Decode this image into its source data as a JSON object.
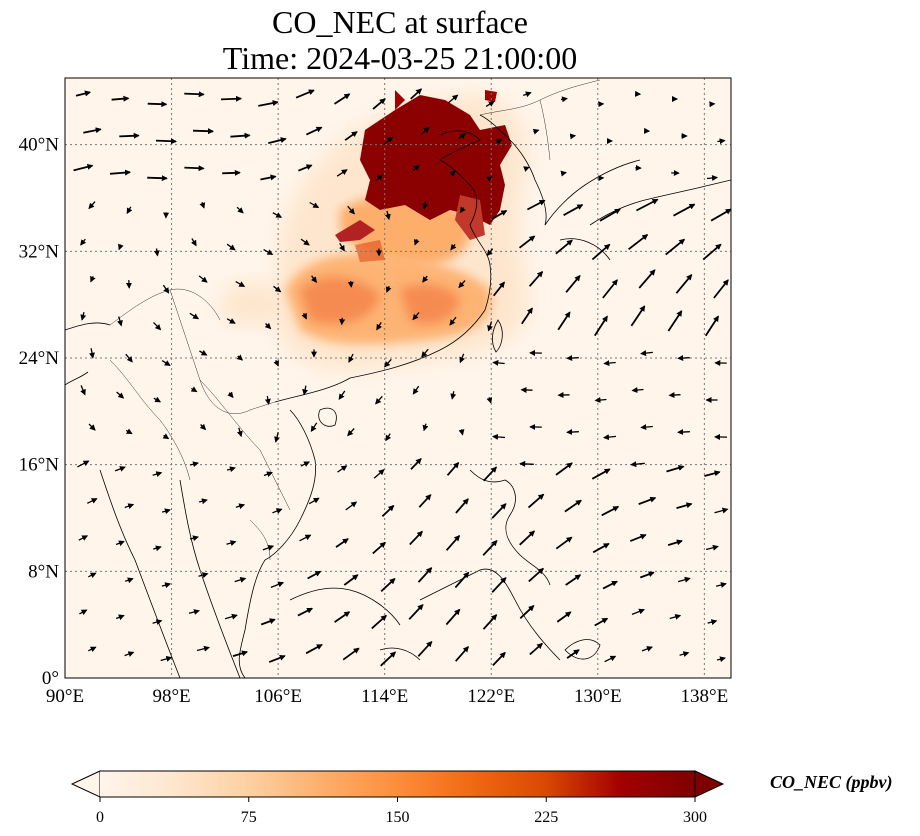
{
  "title": {
    "line1": "CO_NEC at surface",
    "line2": "Time: 2024-03-25 21:00:00"
  },
  "map": {
    "lon_range": [
      90,
      140
    ],
    "lat_range": [
      0,
      45
    ],
    "lon_ticks": [
      {
        "value": 90,
        "label": "90°E"
      },
      {
        "value": 98,
        "label": "98°E"
      },
      {
        "value": 106,
        "label": "106°E"
      },
      {
        "value": 114,
        "label": "114°E"
      },
      {
        "value": 122,
        "label": "122°E"
      },
      {
        "value": 130,
        "label": "130°E"
      },
      {
        "value": 138,
        "label": "138°E"
      }
    ],
    "lat_ticks": [
      {
        "value": 0,
        "label": "0°"
      },
      {
        "value": 8,
        "label": "8°N"
      },
      {
        "value": 16,
        "label": "16°N"
      },
      {
        "value": 24,
        "label": "24°N"
      },
      {
        "value": 32,
        "label": "32°N"
      },
      {
        "value": 40,
        "label": "40°N"
      }
    ],
    "gridlines": true,
    "background_color": "#fff5eb",
    "wind_vectors": true
  },
  "colorbar": {
    "title": "CO_NEC (ppbv)",
    "range": [
      0,
      300
    ],
    "ticks": [
      {
        "value": 0,
        "label": "0"
      },
      {
        "value": 75,
        "label": "75"
      },
      {
        "value": 150,
        "label": "150"
      },
      {
        "value": 225,
        "label": "225"
      },
      {
        "value": 300,
        "label": "300"
      }
    ],
    "colors": [
      "#fff5eb",
      "#fee6ce",
      "#fdd0a2",
      "#fdae6b",
      "#fd8d3c",
      "#f16913",
      "#d94801",
      "#a30000",
      "#7f0000"
    ],
    "extend": "both"
  }
}
